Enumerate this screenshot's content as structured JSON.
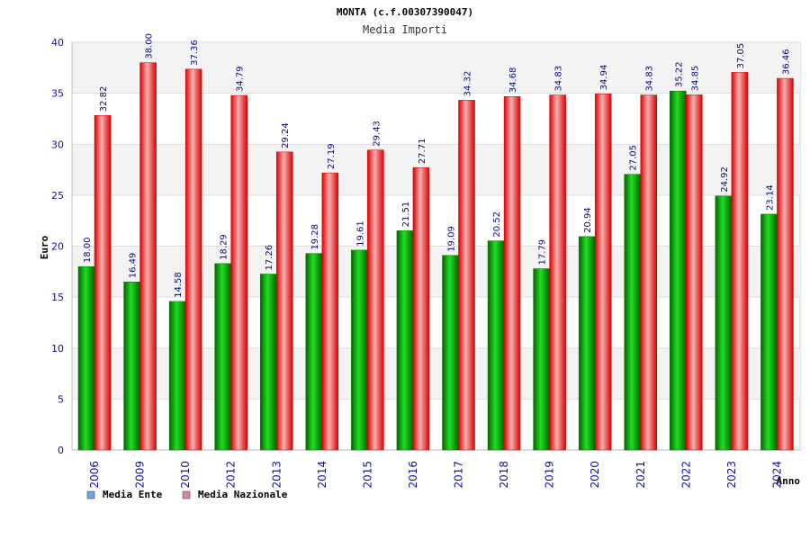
{
  "chart_data": {
    "type": "bar",
    "title": "MONTA (c.f.00307390047)",
    "subtitle": "Media Importi",
    "xlabel": "Anno",
    "ylabel": "Euro",
    "ylim": [
      0,
      40
    ],
    "yticks": [
      0,
      5,
      10,
      15,
      20,
      25,
      30,
      35,
      40
    ],
    "grid": true,
    "legend_position": "bottom-left",
    "categories": [
      "2006",
      "2009",
      "2010",
      "2012",
      "2013",
      "2014",
      "2015",
      "2016",
      "2017",
      "2018",
      "2019",
      "2020",
      "2021",
      "2022",
      "2023",
      "2024"
    ],
    "series": [
      {
        "name": "Media Ente",
        "color": "#00aa00",
        "legend_color": "#6aa6e8",
        "values": [
          18.0,
          16.49,
          14.58,
          18.29,
          17.26,
          19.28,
          19.61,
          21.51,
          19.09,
          20.52,
          17.79,
          20.94,
          27.05,
          35.22,
          24.92,
          23.14
        ],
        "labels": [
          "18.00",
          "16.49",
          "14.58",
          "18.29",
          "17.26",
          "19.28",
          "19.61",
          "21.51",
          "19.09",
          "20.52",
          "17.79",
          "20.94",
          "27.05",
          "35.22",
          "24.92",
          "23.14"
        ]
      },
      {
        "name": "Media Nazionale",
        "color": "#ee1111",
        "legend_color": "#e080a8",
        "values": [
          32.82,
          38.0,
          37.36,
          34.79,
          29.24,
          27.19,
          29.43,
          27.71,
          34.32,
          34.68,
          34.83,
          34.94,
          34.83,
          34.85,
          37.05,
          36.46
        ],
        "labels": [
          "32.82",
          "38.00",
          "37.36",
          "34.79",
          "29.24",
          "27.19",
          "29.43",
          "27.71",
          "34.32",
          "34.68",
          "34.83",
          "34.94",
          "34.83",
          "34.85",
          "37.05",
          "36.46"
        ]
      }
    ]
  }
}
